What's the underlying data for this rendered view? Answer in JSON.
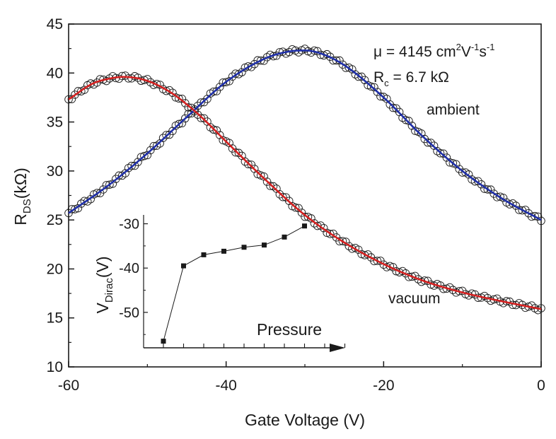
{
  "chart_data": [
    {
      "type": "scatter",
      "title": "",
      "xlabel": "Gate Voltage (V)",
      "ylabel": {
        "main": "R",
        "sub": "DS",
        "unit": "(kΩ)"
      },
      "xlim": [
        -60,
        0
      ],
      "ylim": [
        10,
        45
      ],
      "xticks": [
        -60,
        -40,
        -20,
        0
      ],
      "yticks": [
        10,
        15,
        20,
        25,
        30,
        35,
        40,
        45
      ],
      "grid": false,
      "colors": {
        "ambient_fit": "#1f2fa8",
        "vacuum_fit": "#d42020",
        "markers": "#1a1a1a"
      },
      "annotations": {
        "mobility": {
          "lead": "μ = 4145 cm",
          "sup1": "2",
          "mid": "V",
          "sup2": "-1",
          "mid2": "s",
          "sup3": "-1"
        },
        "contact": {
          "lead": "R",
          "sub": "c",
          "rest": " = 6.7 kΩ"
        }
      },
      "series": [
        {
          "label": "ambient",
          "marker": "open-circle",
          "fit": "line",
          "x": [
            -60,
            -55,
            -50,
            -45,
            -40,
            -35,
            -32,
            -30,
            -28,
            -25,
            -20,
            -15,
            -10,
            -5,
            0
          ],
          "y": [
            25.7,
            28.5,
            31.8,
            35.5,
            39.1,
            41.5,
            42.2,
            42.3,
            42.0,
            40.8,
            37.5,
            33.5,
            30.0,
            27.2,
            25.0
          ]
        },
        {
          "label": "vacuum",
          "marker": "open-circle",
          "fit": "line",
          "x": [
            -60,
            -57,
            -55,
            -53,
            -50,
            -47,
            -45,
            -43,
            -40,
            -35,
            -30,
            -25,
            -20,
            -15,
            -10,
            -5,
            0
          ],
          "y": [
            37.3,
            38.9,
            39.4,
            39.6,
            39.2,
            38.0,
            36.8,
            35.4,
            33.0,
            29.1,
            25.5,
            22.7,
            20.5,
            18.8,
            17.6,
            16.7,
            15.9
          ]
        }
      ]
    },
    {
      "type": "line",
      "title": "",
      "xlabel": "Pressure",
      "ylabel": {
        "main": "V",
        "sub": "Dirac",
        "unit": "(V)"
      },
      "yticks": [
        -50,
        -40,
        -30
      ],
      "ylim": [
        -58,
        -28
      ],
      "series": [
        {
          "marker": "filled-square",
          "x": [
            1,
            2,
            3,
            4,
            5,
            6,
            7,
            8
          ],
          "y": [
            -56.5,
            -39.5,
            -37.0,
            -36.2,
            -35.3,
            -34.8,
            -33.0,
            -30.5
          ]
        }
      ]
    }
  ]
}
